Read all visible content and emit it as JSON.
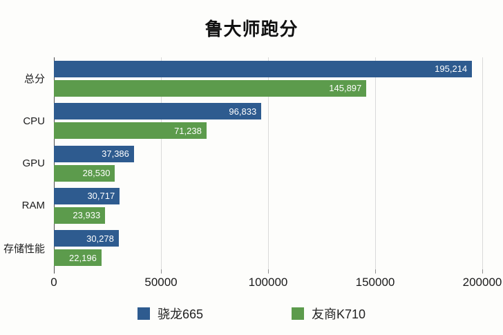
{
  "title": "鲁大师跑分",
  "colors": {
    "series1": "#2E5B8F",
    "series2": "#5C9B4C",
    "gridline": "#D9D9D9",
    "axis": "#4A4A4A",
    "value_label": "#FFFFFF",
    "text": "#1C1C1C",
    "background": "#FDFDFB"
  },
  "chart_data": {
    "type": "bar",
    "orientation": "horizontal",
    "title": "鲁大师跑分",
    "categories": [
      "总分",
      "CPU",
      "GPU",
      "RAM",
      "存储性能"
    ],
    "series": [
      {
        "name": "骁龙665",
        "color": "#2E5B8F",
        "values": [
          195214,
          96833,
          37386,
          30717,
          30278
        ],
        "labels": [
          "195,214",
          "96,833",
          "37,386",
          "30,717",
          "30,278"
        ]
      },
      {
        "name": "友商K710",
        "color": "#5C9B4C",
        "values": [
          145897,
          71238,
          28530,
          23933,
          22196
        ],
        "labels": [
          "145,897",
          "71,238",
          "28,530",
          "23,933",
          "22,196"
        ]
      }
    ],
    "xlabel": "",
    "ylabel": "",
    "xlim": [
      0,
      200000
    ],
    "x_ticks": [
      0,
      50000,
      100000,
      150000,
      200000
    ],
    "x_tick_labels": [
      "0",
      "50000",
      "100000",
      "150000",
      "200000"
    ],
    "grid": true,
    "value_labels_inside_bars": true,
    "legend_position": "bottom"
  },
  "legend": {
    "items": [
      {
        "label": "骁龙665",
        "color": "#2E5B8F"
      },
      {
        "label": "友商K710",
        "color": "#5C9B4C"
      }
    ]
  }
}
